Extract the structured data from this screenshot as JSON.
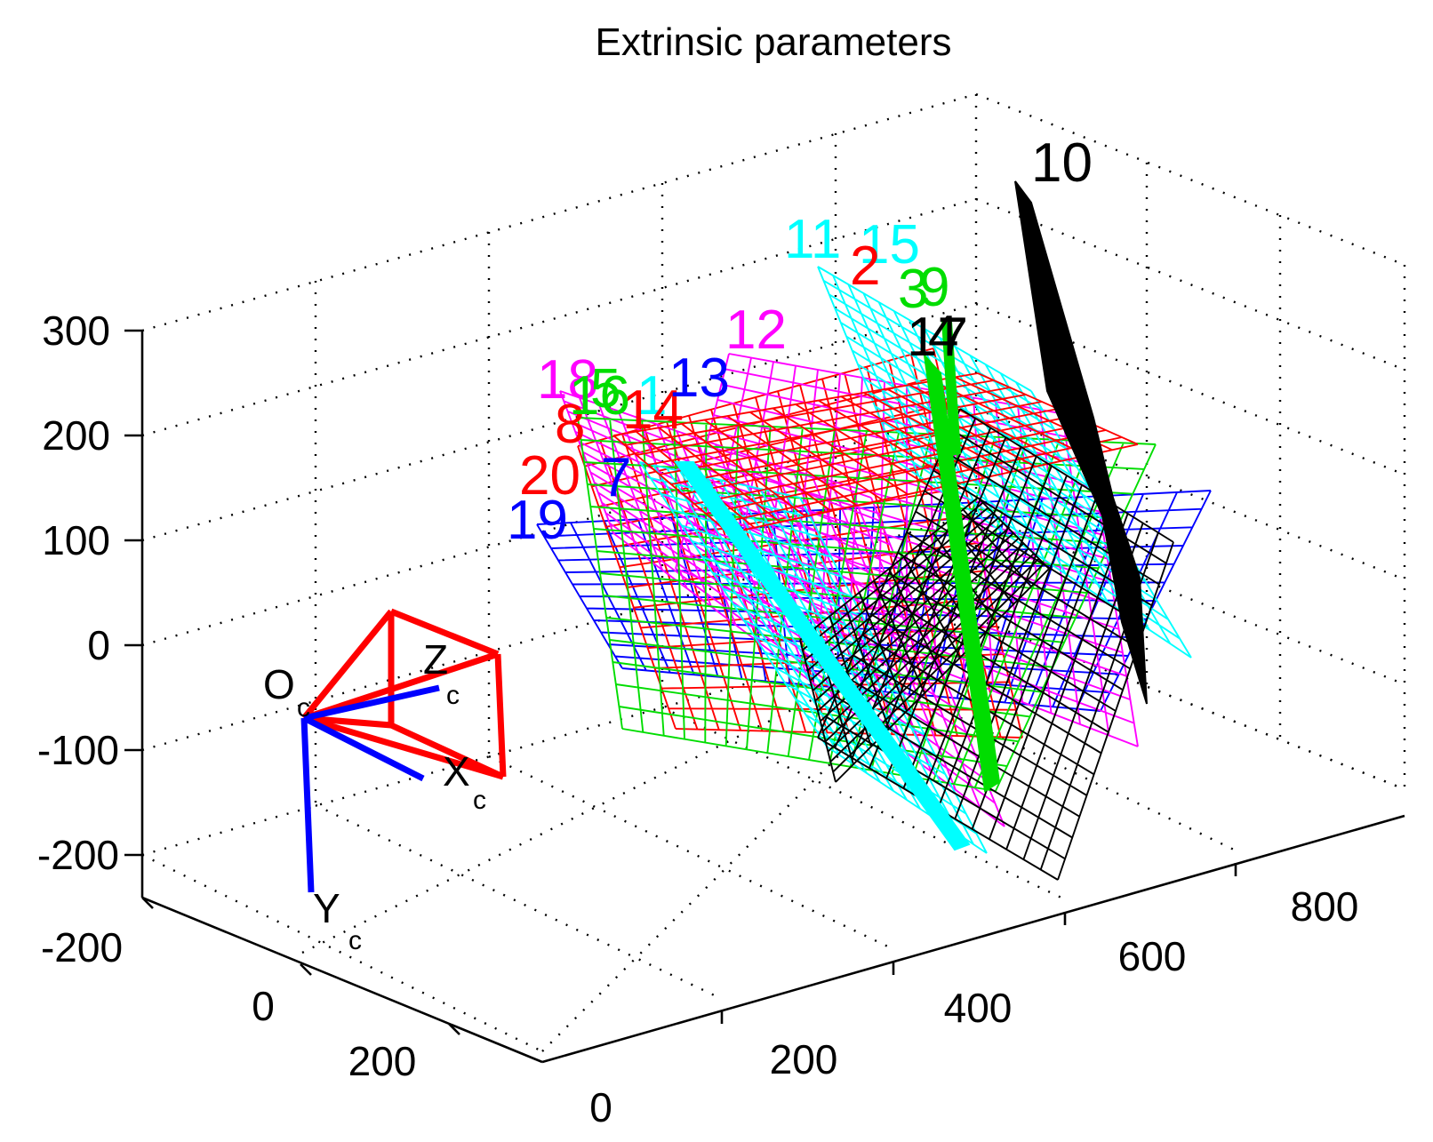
{
  "chart_data": {
    "type": "3d-mesh",
    "title": "Extrinsic parameters",
    "axes": {
      "z_ticks": [
        "300",
        "200",
        "100",
        "0",
        "-100",
        "-200"
      ],
      "x_ticks": [
        "-200",
        "0",
        "200"
      ],
      "y_ticks": [
        "0",
        "200",
        "400",
        "600",
        "800"
      ]
    },
    "grid": true,
    "camera": {
      "origin_label": "O",
      "origin_sub": "c",
      "x_label": "X",
      "x_sub": "c",
      "y_label": "Y",
      "y_sub": "c",
      "z_label": "Z",
      "z_sub": "c",
      "frustum_color": "#ff0000",
      "axis_color": "#0000ff"
    },
    "boards": [
      {
        "label": "19",
        "color": "#0000ff"
      },
      {
        "label": "20",
        "color": "#ff0000"
      },
      {
        "label": "7",
        "color": "#0000ff"
      },
      {
        "label": "8",
        "color": "#ff0000"
      },
      {
        "label": "18",
        "color": "#ff00ff"
      },
      {
        "label": "16",
        "color": "#00dd00"
      },
      {
        "label": "5",
        "color": "#00dd00"
      },
      {
        "label": "1",
        "color": "#00ffff"
      },
      {
        "label": "14",
        "color": "#ff0000"
      },
      {
        "label": "13",
        "color": "#0000ff"
      },
      {
        "label": "12",
        "color": "#ff00ff"
      },
      {
        "label": "11",
        "color": "#00ffff"
      },
      {
        "label": "15",
        "color": "#00ffff"
      },
      {
        "label": "3",
        "color": "#00dd00"
      },
      {
        "label": "9",
        "color": "#00dd00"
      },
      {
        "label": "17",
        "color": "#000000"
      },
      {
        "label": "4",
        "color": "#000000"
      },
      {
        "label": "10",
        "color": "#000000"
      },
      {
        "label": "2",
        "color": "#ff0000"
      }
    ]
  }
}
